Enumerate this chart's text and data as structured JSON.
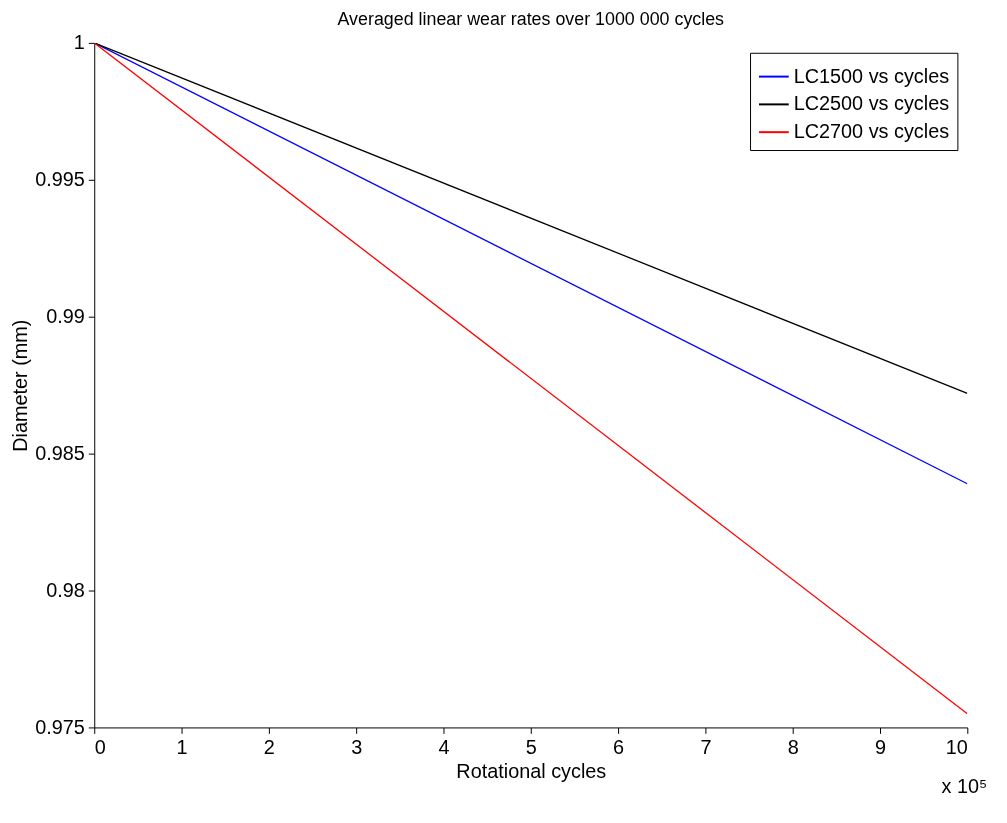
{
  "chart_data": {
    "type": "line",
    "title": "Averaged linear wear rates over 1000 000 cycles",
    "xlabel": "Rotational cycles",
    "ylabel": "Diameter (mm)",
    "x": [
      0,
      10
    ],
    "series": [
      {
        "name": "LC1500 vs cycles",
        "color": "#0000ff",
        "values": [
          1,
          0.9839
        ]
      },
      {
        "name": "LC2500 vs cycles",
        "color": "#000000",
        "values": [
          1,
          0.9872
        ]
      },
      {
        "name": "LC2700 vs cycles",
        "color": "#ff0000",
        "values": [
          1,
          0.9755
        ]
      }
    ],
    "xlim": [
      0,
      10
    ],
    "xticks": [
      0,
      1,
      2,
      3,
      4,
      5,
      6,
      7,
      8,
      9,
      10
    ],
    "ylim": [
      0.975,
      1
    ],
    "yticks": [
      0.975,
      0.98,
      0.985,
      0.99,
      0.995,
      1
    ],
    "annotations": [
      "x 10⁵"
    ],
    "grid": false,
    "legend": "top right",
    "marker": "none",
    "line_style": "solid"
  }
}
